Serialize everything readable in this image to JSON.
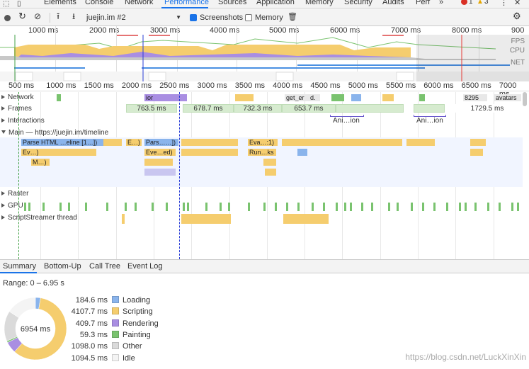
{
  "tabs": [
    {
      "label": "Elements"
    },
    {
      "label": "Console"
    },
    {
      "label": "Network"
    },
    {
      "label": "Performance"
    },
    {
      "label": "Sources"
    },
    {
      "label": "Application"
    },
    {
      "label": "Memory"
    },
    {
      "label": "Security"
    },
    {
      "label": "Audits"
    },
    {
      "label": "Perf"
    },
    {
      "label": "»"
    }
  ],
  "status": {
    "errors": "1",
    "warnings": "3"
  },
  "toolbar": {
    "profile_select": "juejin.im #2",
    "screenshots_label": "Screenshots",
    "memory_label": "Memory"
  },
  "overview": {
    "ticks": [
      "1000 ms",
      "2000 ms",
      "3000 ms",
      "4000 ms",
      "5000 ms",
      "6000 ms",
      "7000 ms",
      "8000 ms",
      "900"
    ],
    "labels": {
      "fps": "FPS",
      "cpu": "CPU",
      "net": "NET"
    }
  },
  "ruler": {
    "ticks": [
      "500 ms",
      "1000 ms",
      "1500 ms",
      "2000 ms",
      "2500 ms",
      "3000 ms",
      "3500 ms",
      "4000 ms",
      "4500 ms",
      "5000 ms",
      "5500 ms",
      "6000 ms",
      "6500 ms",
      "7000 ms"
    ]
  },
  "tracks": {
    "network": "Network",
    "frames": "Frames",
    "interactions": "Interactions",
    "main": "Main — https://juejin.im/timeline",
    "raster": "Raster",
    "gpu": "GPU",
    "scriptstreamer": "ScriptStreamer thread"
  },
  "network_labels": [
    "ior",
    "get_er",
    "d.",
    "8295",
    "avatars"
  ],
  "frames": [
    "763.5 ms",
    "678.7 ms",
    "732.3 ms",
    "653.7 ms",
    "1729.5 ms"
  ],
  "interactions": [
    "Ani…ion",
    "Ani…ion"
  ],
  "main_blocks": {
    "row1": [
      "Parse HTML …eline [1…])",
      "E…)",
      "Pars……])",
      "Eva…:1)"
    ],
    "row2": [
      "Ev…)",
      "Eve…ed)",
      "Run…ks"
    ],
    "row3": [
      "M…)"
    ]
  },
  "bottom_tabs": [
    "Summary",
    "Bottom-Up",
    "Call Tree",
    "Event Log"
  ],
  "summary": {
    "range": "Range: 0 – 6.95 s",
    "total": "6954 ms",
    "items": [
      {
        "value": "184.6 ms",
        "label": "Loading",
        "color": "#8ab4ec",
        "ms": 184.6
      },
      {
        "value": "4107.7 ms",
        "label": "Scripting",
        "color": "#f5cd6e",
        "ms": 4107.7
      },
      {
        "value": "409.7 ms",
        "label": "Rendering",
        "color": "#a98ee2",
        "ms": 409.7
      },
      {
        "value": "59.3 ms",
        "label": "Painting",
        "color": "#7ac36f",
        "ms": 59.3
      },
      {
        "value": "1098.0 ms",
        "label": "Other",
        "color": "#dadada",
        "ms": 1098.0
      },
      {
        "value": "1094.5 ms",
        "label": "Idle",
        "color": "#f4f4f4",
        "ms": 1094.5
      }
    ]
  },
  "watermark": "https://blog.csdn.net/LuckXinXin"
}
